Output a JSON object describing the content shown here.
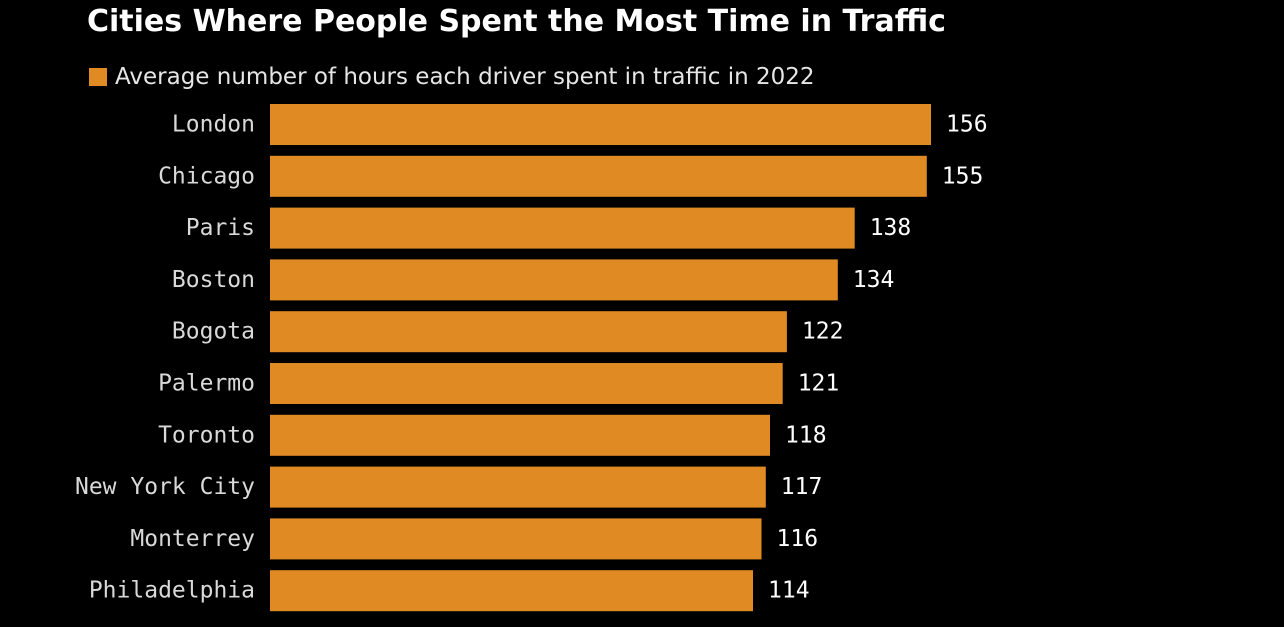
{
  "chart_data": {
    "type": "bar",
    "orientation": "horizontal",
    "title": "Cities Where People Spent the Most Time in Traffic",
    "categories": [
      "London",
      "Chicago",
      "Paris",
      "Boston",
      "Bogota",
      "Palermo",
      "Toronto",
      "New York City",
      "Monterrey",
      "Philadelphia"
    ],
    "series": [
      {
        "name": "Average number of hours each driver spent in traffic in 2022",
        "values": [
          156,
          155,
          138,
          134,
          122,
          121,
          118,
          117,
          116,
          114
        ],
        "color": "#e08a24"
      }
    ],
    "data_labels": [
      "156",
      "155",
      "138",
      "134",
      "122",
      "121",
      "118",
      "117",
      "116",
      "114"
    ],
    "xlim": [
      0,
      156
    ],
    "grid": false,
    "legend_position": "top-left",
    "colors": {
      "background": "#000000",
      "bar": "#e08a24",
      "text": "#ffffff"
    }
  }
}
